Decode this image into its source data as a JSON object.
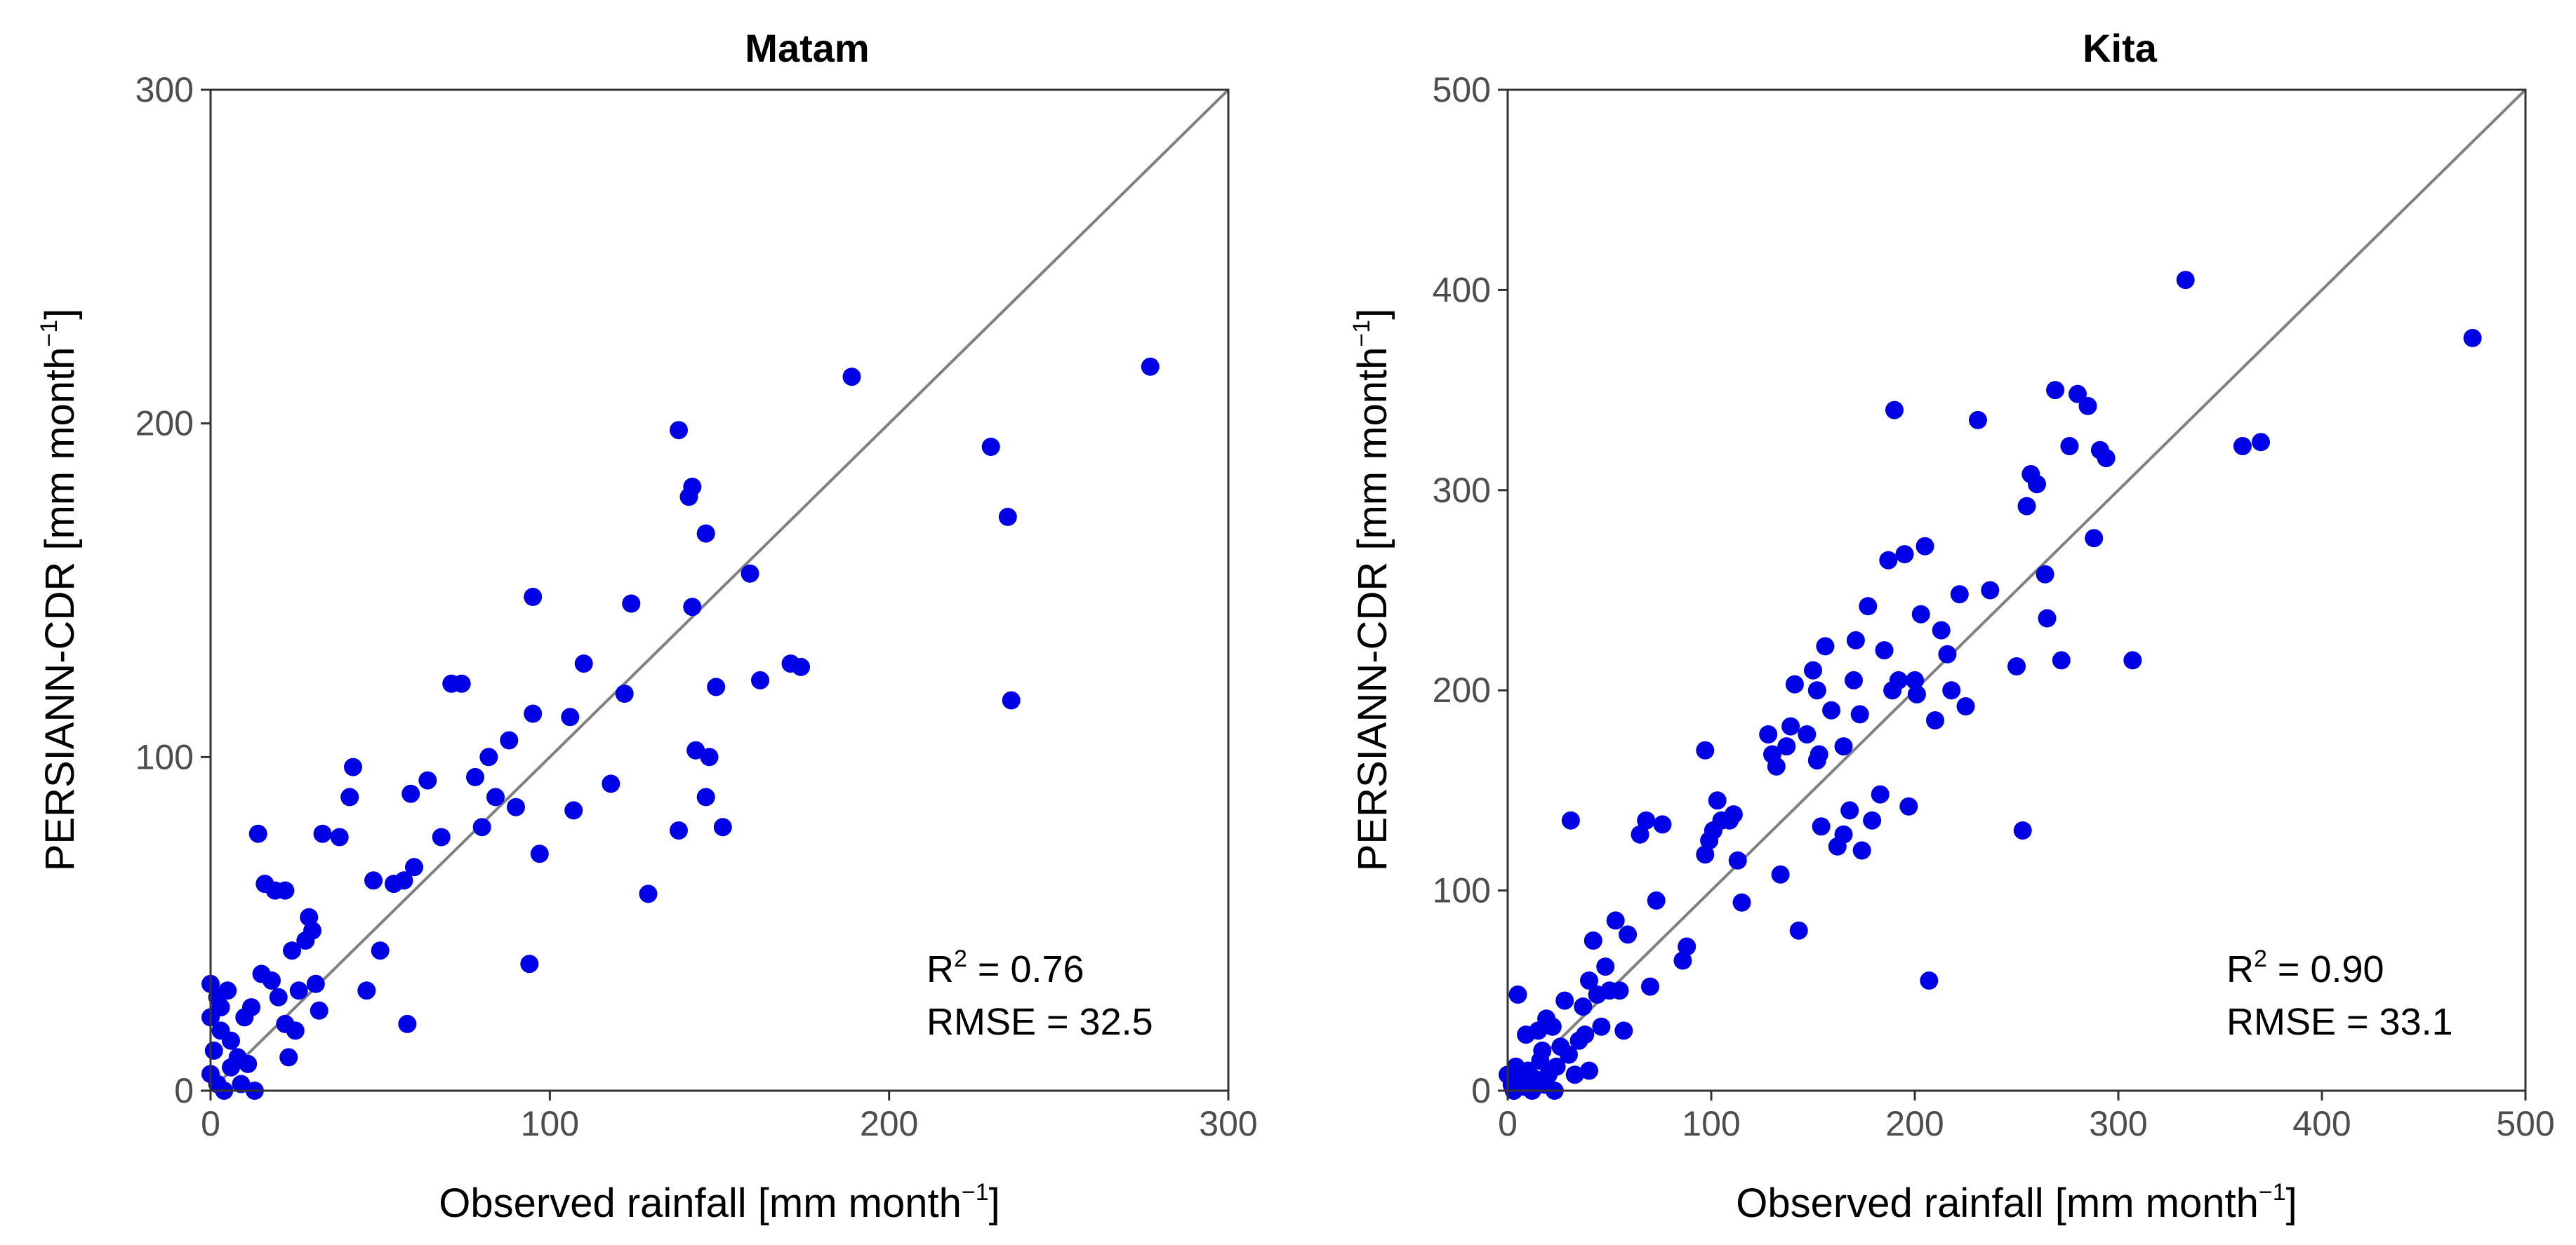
{
  "chart_data": [
    {
      "type": "scatter",
      "title": "Matam",
      "xlabel": "Observed rainfall [mm month",
      "ylabel": "PERSIANN-CDR [mm month",
      "label_superscript": "−1",
      "label_close": "]",
      "xlim": [
        0,
        300
      ],
      "ylim": [
        0,
        300
      ],
      "xticks": [
        0,
        100,
        200,
        300
      ],
      "yticks": [
        0,
        100,
        200,
        300
      ],
      "identity_line": true,
      "grid": false,
      "marker_color": "#0000e6",
      "line_color": "#808080",
      "annotation": {
        "r2_prefix": "R",
        "r2_sup": "2",
        "r2_value": " = 0.76",
        "rmse": "RMSE = 32.5",
        "placement": "bottom-right"
      },
      "points": [
        [
          0,
          32
        ],
        [
          2,
          28
        ],
        [
          5,
          30
        ],
        [
          0,
          22
        ],
        [
          3,
          18
        ],
        [
          1,
          12
        ],
        [
          0,
          5
        ],
        [
          2,
          2
        ],
        [
          4,
          0
        ],
        [
          6,
          7
        ],
        [
          8,
          10
        ],
        [
          10,
          22
        ],
        [
          12,
          25
        ],
        [
          6,
          15
        ],
        [
          3,
          25
        ],
        [
          9,
          2
        ],
        [
          11,
          8
        ],
        [
          13,
          0
        ],
        [
          15,
          35
        ],
        [
          18,
          33
        ],
        [
          19,
          60
        ],
        [
          16,
          62
        ],
        [
          22,
          60
        ],
        [
          14,
          77
        ],
        [
          20,
          28
        ],
        [
          22,
          20
        ],
        [
          23,
          10
        ],
        [
          25,
          18
        ],
        [
          26,
          30
        ],
        [
          24,
          42
        ],
        [
          28,
          45
        ],
        [
          29,
          52
        ],
        [
          30,
          48
        ],
        [
          31,
          32
        ],
        [
          32,
          24
        ],
        [
          33,
          77
        ],
        [
          38,
          76
        ],
        [
          41,
          88
        ],
        [
          42,
          97
        ],
        [
          46,
          30
        ],
        [
          48,
          63
        ],
        [
          50,
          42
        ],
        [
          54,
          62
        ],
        [
          57,
          63
        ],
        [
          58,
          20
        ],
        [
          59,
          89
        ],
        [
          60,
          67
        ],
        [
          64,
          93
        ],
        [
          68,
          76
        ],
        [
          71,
          122
        ],
        [
          74,
          122
        ],
        [
          78,
          94
        ],
        [
          80,
          79
        ],
        [
          82,
          100
        ],
        [
          84,
          88
        ],
        [
          88,
          105
        ],
        [
          90,
          85
        ],
        [
          94,
          38
        ],
        [
          95,
          113
        ],
        [
          95,
          148
        ],
        [
          97,
          71
        ],
        [
          106,
          112
        ],
        [
          107,
          84
        ],
        [
          110,
          128
        ],
        [
          118,
          92
        ],
        [
          122,
          119
        ],
        [
          124,
          146
        ],
        [
          129,
          59
        ],
        [
          138,
          78
        ],
        [
          138,
          198
        ],
        [
          141,
          178
        ],
        [
          142,
          181
        ],
        [
          142,
          145
        ],
        [
          143,
          102
        ],
        [
          146,
          167
        ],
        [
          146,
          88
        ],
        [
          147,
          100
        ],
        [
          149,
          121
        ],
        [
          151,
          79
        ],
        [
          159,
          155
        ],
        [
          162,
          123
        ],
        [
          171,
          128
        ],
        [
          174,
          127
        ],
        [
          189,
          214
        ],
        [
          230,
          193
        ],
        [
          235,
          172
        ],
        [
          236,
          117
        ],
        [
          277,
          217
        ]
      ]
    },
    {
      "type": "scatter",
      "title": "Kita",
      "xlabel": "Observed rainfall [mm month",
      "ylabel": "PERSIANN-CDR [mm month",
      "label_superscript": "−1",
      "label_close": "]",
      "xlim": [
        0,
        500
      ],
      "ylim": [
        0,
        500
      ],
      "xticks": [
        0,
        100,
        200,
        300,
        400,
        500
      ],
      "yticks": [
        0,
        100,
        200,
        300,
        400,
        500
      ],
      "identity_line": true,
      "grid": false,
      "marker_color": "#0000e6",
      "line_color": "#808080",
      "annotation": {
        "r2_prefix": "R",
        "r2_sup": "2",
        "r2_value": " = 0.90",
        "rmse": "RMSE = 33.1",
        "placement": "bottom-right"
      },
      "points": [
        [
          0,
          8
        ],
        [
          2,
          3
        ],
        [
          3,
          0
        ],
        [
          5,
          48
        ],
        [
          4,
          12
        ],
        [
          6,
          5
        ],
        [
          8,
          2
        ],
        [
          9,
          28
        ],
        [
          10,
          10
        ],
        [
          12,
          0
        ],
        [
          13,
          6
        ],
        [
          15,
          30
        ],
        [
          16,
          15
        ],
        [
          17,
          20
        ],
        [
          18,
          3
        ],
        [
          19,
          36
        ],
        [
          20,
          8
        ],
        [
          22,
          32
        ],
        [
          23,
          0
        ],
        [
          24,
          12
        ],
        [
          26,
          22
        ],
        [
          28,
          45
        ],
        [
          30,
          18
        ],
        [
          31,
          135
        ],
        [
          33,
          8
        ],
        [
          35,
          25
        ],
        [
          37,
          42
        ],
        [
          38,
          28
        ],
        [
          40,
          10
        ],
        [
          40,
          55
        ],
        [
          42,
          75
        ],
        [
          44,
          48
        ],
        [
          46,
          32
        ],
        [
          48,
          62
        ],
        [
          50,
          50
        ],
        [
          53,
          85
        ],
        [
          55,
          50
        ],
        [
          57,
          30
        ],
        [
          59,
          78
        ],
        [
          65,
          128
        ],
        [
          68,
          135
        ],
        [
          70,
          52
        ],
        [
          73,
          95
        ],
        [
          76,
          133
        ],
        [
          86,
          65
        ],
        [
          88,
          72
        ],
        [
          97,
          170
        ],
        [
          97,
          118
        ],
        [
          99,
          125
        ],
        [
          101,
          130
        ],
        [
          103,
          145
        ],
        [
          105,
          135
        ],
        [
          109,
          135
        ],
        [
          111,
          138
        ],
        [
          113,
          115
        ],
        [
          115,
          94
        ],
        [
          128,
          178
        ],
        [
          130,
          168
        ],
        [
          132,
          162
        ],
        [
          134,
          108
        ],
        [
          137,
          172
        ],
        [
          139,
          182
        ],
        [
          141,
          203
        ],
        [
          143,
          80
        ],
        [
          147,
          178
        ],
        [
          150,
          210
        ],
        [
          152,
          200
        ],
        [
          152,
          165
        ],
        [
          153,
          168
        ],
        [
          154,
          132
        ],
        [
          156,
          222
        ],
        [
          159,
          190
        ],
        [
          162,
          122
        ],
        [
          165,
          128
        ],
        [
          165,
          172
        ],
        [
          168,
          140
        ],
        [
          170,
          205
        ],
        [
          171,
          225
        ],
        [
          173,
          188
        ],
        [
          174,
          120
        ],
        [
          177,
          242
        ],
        [
          179,
          135
        ],
        [
          183,
          148
        ],
        [
          185,
          220
        ],
        [
          187,
          265
        ],
        [
          189,
          200
        ],
        [
          190,
          340
        ],
        [
          192,
          205
        ],
        [
          195,
          268
        ],
        [
          197,
          142
        ],
        [
          200,
          205
        ],
        [
          201,
          198
        ],
        [
          203,
          238
        ],
        [
          205,
          272
        ],
        [
          207,
          55
        ],
        [
          210,
          185
        ],
        [
          213,
          230
        ],
        [
          216,
          218
        ],
        [
          218,
          200
        ],
        [
          222,
          248
        ],
        [
          225,
          192
        ],
        [
          231,
          335
        ],
        [
          237,
          250
        ],
        [
          250,
          212
        ],
        [
          253,
          130
        ],
        [
          255,
          292
        ],
        [
          257,
          308
        ],
        [
          260,
          303
        ],
        [
          264,
          258
        ],
        [
          265,
          236
        ],
        [
          269,
          350
        ],
        [
          272,
          215
        ],
        [
          276,
          322
        ],
        [
          280,
          348
        ],
        [
          285,
          342
        ],
        [
          288,
          276
        ],
        [
          291,
          320
        ],
        [
          294,
          316
        ],
        [
          307,
          215
        ],
        [
          333,
          405
        ],
        [
          361,
          322
        ],
        [
          370,
          324
        ],
        [
          474,
          376
        ]
      ]
    }
  ]
}
